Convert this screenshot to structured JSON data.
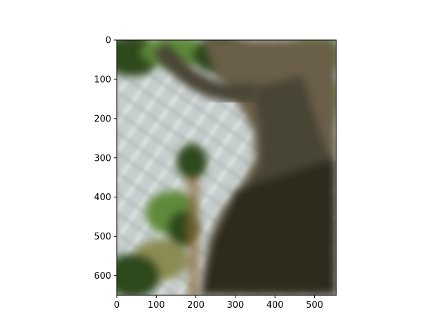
{
  "chart_data": {
    "type": "heatmap",
    "title": "",
    "xlabel": "",
    "ylabel": "",
    "xlim": [
      0,
      555
    ],
    "ylim": [
      650,
      0
    ],
    "xticks": [
      0,
      100,
      200,
      300,
      400,
      500
    ],
    "yticks": [
      0,
      100,
      200,
      300,
      400,
      500,
      600
    ],
    "grid": false,
    "legend": "none",
    "image_subject": "blurred photo of a tree trunk with green foliage in front of a chain-link fence",
    "colors": {
      "trunk_dark": "#2f2b1f",
      "trunk_mid": "#4a4434",
      "trunk_upper": "#6a5f4a",
      "fence_light": "#c9d2d2",
      "fence_wire": "#e8eeee",
      "foliage_dark": "#2e4a1c",
      "foliage_light": "#5f8a3a",
      "foliage_olive": "#8a8c52",
      "ground_brown": "#8a6a3c"
    }
  }
}
